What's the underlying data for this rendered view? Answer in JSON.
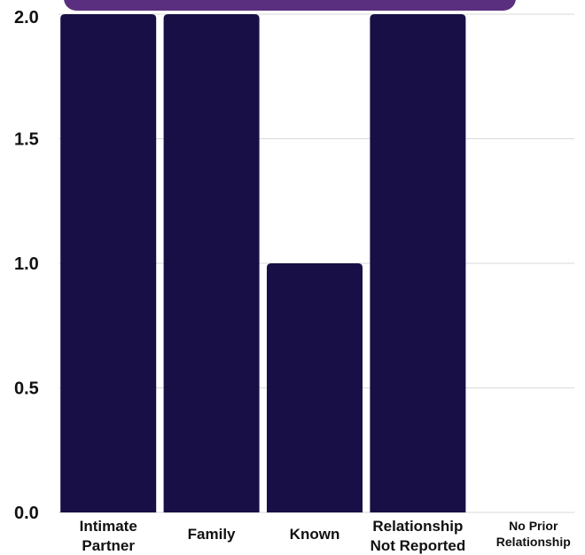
{
  "chart_data": {
    "type": "bar",
    "categories": [
      "Intimate Partner",
      "Family",
      "Known",
      "Relationship Not Reported",
      "No Prior Relationship"
    ],
    "category_label_lines": [
      [
        "Intimate",
        "Partner"
      ],
      [
        "Family"
      ],
      [
        "Known"
      ],
      [
        "Relationship",
        "Not Reported"
      ],
      [
        "No Prior",
        "Relationship"
      ]
    ],
    "values": [
      2,
      2,
      1,
      2,
      0
    ],
    "ylim": [
      0,
      2
    ],
    "yticks": [
      "0.0",
      "0.5",
      "1.0",
      "1.5",
      "2.0"
    ],
    "xlabel": "",
    "ylabel": "",
    "grid": true,
    "bar_color": "#170f45",
    "grid_color": "#d9d9d9",
    "banner_color": "#5a2f7f"
  }
}
